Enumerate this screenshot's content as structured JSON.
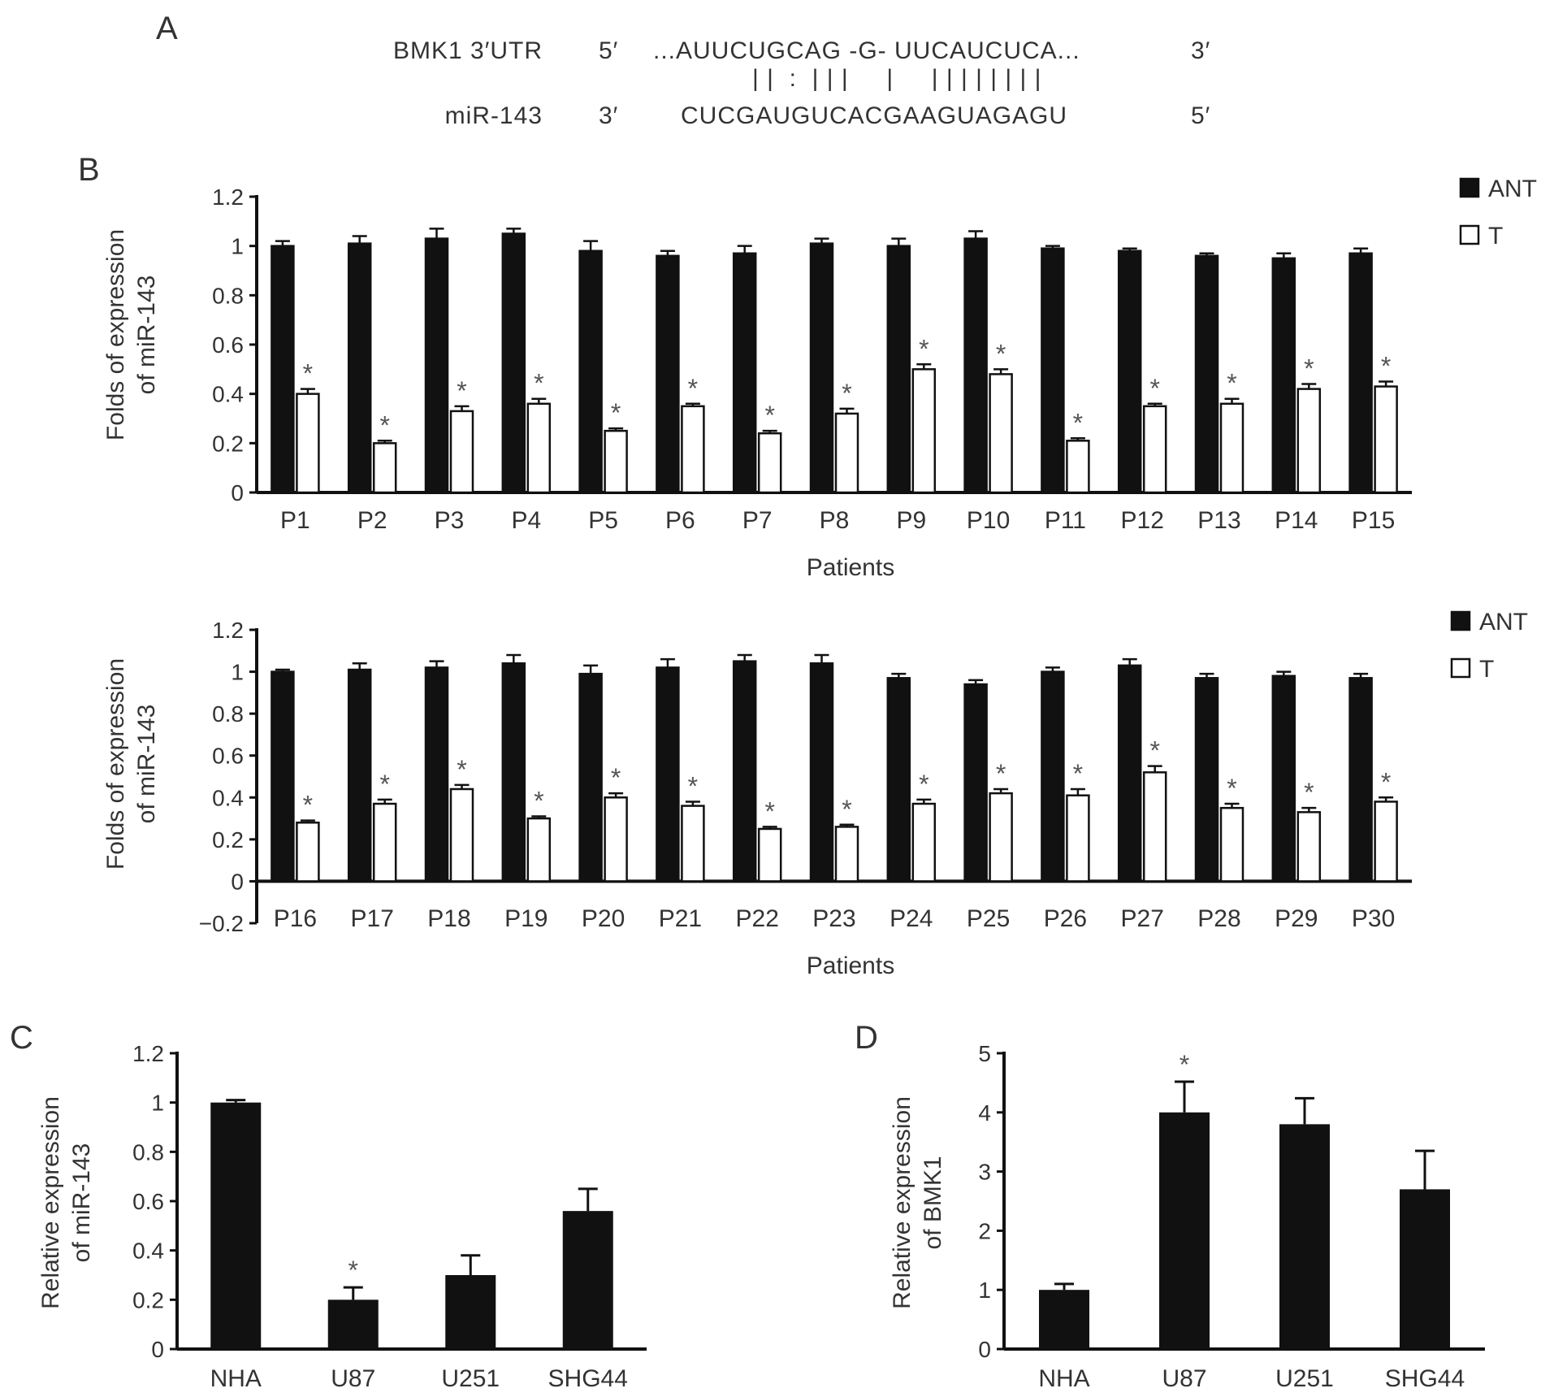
{
  "panel_labels": {
    "a": "A",
    "b": "B",
    "c": "C",
    "d": "D"
  },
  "alignment": {
    "top_name": "BMK1 3′UTR",
    "top_left_end": "5′",
    "top_sequence": "...AUUCUGCAG -G- UUCAUCUCA...",
    "top_right_end": "3′",
    "pairing": "| |  :  | | |     |     | | | | | | | |",
    "bottom_name": "miR-143",
    "bottom_left_end": "3′",
    "bottom_sequence": "CUCGAUGUCACGAAGUAGAGU",
    "bottom_right_end": "5′"
  },
  "colors": {
    "bar_ant": "#111111",
    "bar_t": "#ffffff",
    "axis": "#111111",
    "text": "#333333"
  },
  "chart_data": [
    {
      "type": "bar",
      "panel": "B",
      "categories": [
        "P1",
        "P2",
        "P3",
        "P4",
        "P5",
        "P6",
        "P7",
        "P8",
        "P9",
        "P10",
        "P11",
        "P12",
        "P13",
        "P14",
        "P15"
      ],
      "series": [
        {
          "name": "ANT",
          "values": [
            1.0,
            1.01,
            1.03,
            1.05,
            0.98,
            0.96,
            0.97,
            1.01,
            1.0,
            1.03,
            0.99,
            0.98,
            0.96,
            0.95,
            0.97
          ],
          "errors": [
            0.02,
            0.03,
            0.04,
            0.02,
            0.04,
            0.02,
            0.03,
            0.02,
            0.03,
            0.03,
            0.01,
            0.01,
            0.01,
            0.02,
            0.02
          ]
        },
        {
          "name": "T",
          "values": [
            0.4,
            0.2,
            0.33,
            0.36,
            0.25,
            0.35,
            0.24,
            0.32,
            0.5,
            0.48,
            0.21,
            0.35,
            0.36,
            0.42,
            0.43
          ],
          "errors": [
            0.02,
            0.01,
            0.02,
            0.02,
            0.01,
            0.01,
            0.01,
            0.02,
            0.02,
            0.02,
            0.01,
            0.01,
            0.02,
            0.02,
            0.02
          ]
        }
      ],
      "significance_marker": "*",
      "xlabel": "Patients",
      "ylabel_lines": [
        "Folds of expression",
        "of miR-143"
      ],
      "ylim": [
        0,
        1.2
      ],
      "yticks": [
        0,
        0.2,
        0.4,
        0.6,
        0.8,
        1,
        1.2
      ],
      "ytick_labels": [
        "0",
        "0.2",
        "0.4",
        "0.6",
        "0.8",
        "1",
        "1.2"
      ],
      "legend": [
        "ANT",
        "T"
      ],
      "legend_position": "top-right"
    },
    {
      "type": "bar",
      "panel": "B",
      "categories": [
        "P16",
        "P17",
        "P18",
        "P19",
        "P20",
        "P21",
        "P22",
        "P23",
        "P24",
        "P25",
        "P26",
        "P27",
        "P28",
        "P29",
        "P30"
      ],
      "series": [
        {
          "name": "ANT",
          "values": [
            1.0,
            1.01,
            1.02,
            1.04,
            0.99,
            1.02,
            1.05,
            1.04,
            0.97,
            0.94,
            1.0,
            1.03,
            0.97,
            0.98,
            0.97
          ],
          "errors": [
            0.01,
            0.03,
            0.03,
            0.04,
            0.04,
            0.04,
            0.03,
            0.04,
            0.02,
            0.02,
            0.02,
            0.03,
            0.02,
            0.02,
            0.02
          ]
        },
        {
          "name": "T",
          "values": [
            0.28,
            0.37,
            0.44,
            0.3,
            0.4,
            0.36,
            0.25,
            0.26,
            0.37,
            0.42,
            0.41,
            0.52,
            0.35,
            0.33,
            0.38
          ],
          "errors": [
            0.01,
            0.02,
            0.02,
            0.01,
            0.02,
            0.02,
            0.01,
            0.01,
            0.02,
            0.02,
            0.03,
            0.03,
            0.02,
            0.02,
            0.02
          ]
        }
      ],
      "significance_marker": "*",
      "xlabel": "Patients",
      "ylabel_lines": [
        "Folds of expression",
        "of miR-143"
      ],
      "ylim": [
        -0.2,
        1.2
      ],
      "yticks": [
        -0.2,
        0,
        0.2,
        0.4,
        0.6,
        0.8,
        1,
        1.2
      ],
      "ytick_labels": [
        "−0.2",
        "0",
        "0.2",
        "0.4",
        "0.6",
        "0.8",
        "1",
        "1.2"
      ],
      "legend": [
        "ANT",
        "T"
      ],
      "legend_position": "top-right"
    },
    {
      "type": "bar",
      "panel": "C",
      "categories": [
        "NHA",
        "U87",
        "U251",
        "SHG44"
      ],
      "values": [
        1.0,
        0.2,
        0.3,
        0.56
      ],
      "errors": [
        0.01,
        0.05,
        0.08,
        0.09
      ],
      "significant": [
        false,
        true,
        false,
        false
      ],
      "significance_marker": "*",
      "xlabel": "",
      "ylabel_lines": [
        "Relative expression",
        "of miR-143"
      ],
      "ylim": [
        0,
        1.2
      ],
      "yticks": [
        0,
        0.2,
        0.4,
        0.6,
        0.8,
        1,
        1.2
      ],
      "ytick_labels": [
        "0",
        "0.2",
        "0.4",
        "0.6",
        "0.8",
        "1",
        "1.2"
      ]
    },
    {
      "type": "bar",
      "panel": "D",
      "categories": [
        "NHA",
        "U87",
        "U251",
        "SHG44"
      ],
      "values": [
        1.0,
        4.0,
        3.8,
        2.7
      ],
      "errors": [
        0.1,
        0.52,
        0.44,
        0.65
      ],
      "significant": [
        false,
        true,
        false,
        false
      ],
      "significance_marker": "*",
      "xlabel": "",
      "ylabel_lines": [
        "Relative expression",
        "of BMK1"
      ],
      "ylim": [
        0,
        5
      ],
      "yticks": [
        0,
        1,
        2,
        3,
        4,
        5
      ],
      "ytick_labels": [
        "0",
        "1",
        "2",
        "3",
        "4",
        "5"
      ]
    }
  ]
}
